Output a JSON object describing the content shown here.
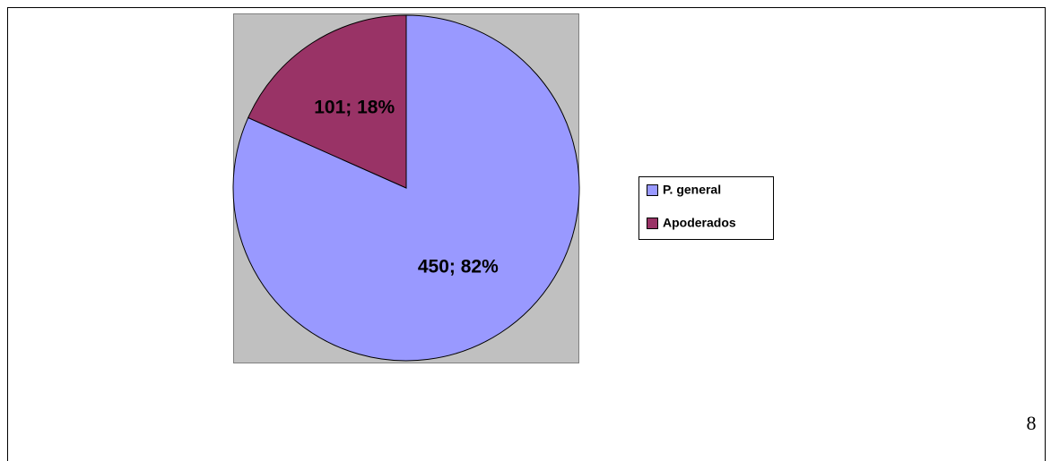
{
  "chart_data": {
    "type": "pie",
    "categories": [
      "P. general",
      "Apoderados"
    ],
    "values": [
      450,
      101
    ],
    "value_labels": [
      "450; 82%",
      "101; 18%"
    ],
    "colors": [
      "#9999ff",
      "#993366"
    ],
    "legend": "right"
  },
  "page_number": "8"
}
